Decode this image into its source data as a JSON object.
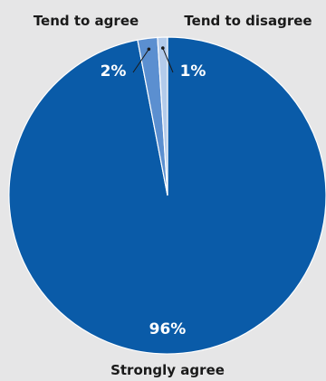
{
  "chart_data": {
    "type": "pie",
    "title": "",
    "slices": [
      {
        "label": "Strongly agree",
        "value": 96,
        "value_label": "96%",
        "color": "#0a5ba8"
      },
      {
        "label": "Tend to agree",
        "value": 2,
        "value_label": "2%",
        "color": "#5b8fd0"
      },
      {
        "label": "Tend to disagree",
        "value": 1,
        "value_label": "1%",
        "color": "#b3cbeb"
      }
    ],
    "start_angle": "12 o'clock",
    "direction": "clockwise",
    "legend": "none",
    "background": "#e6e6e7"
  }
}
